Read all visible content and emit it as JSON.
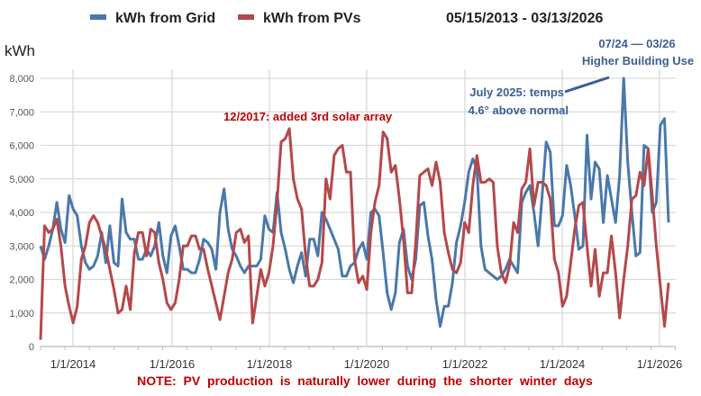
{
  "chart_data": {
    "type": "line",
    "title": "05/15/2013 - 03/13/2026",
    "ylabel": "kWh",
    "xlabel": "",
    "x_range": [
      "05/15/2013",
      "03/13/2026"
    ],
    "ylim": [
      0,
      8000
    ],
    "yticks": [
      "0",
      "1,000",
      "2,000",
      "3,000",
      "4,000",
      "5,000",
      "6,000",
      "7,000",
      "8,000"
    ],
    "xticks": [
      "1/1/2014",
      "1/1/2016",
      "1/1/2018",
      "1/1/2020",
      "1/1/2022",
      "1/1/2024",
      "1/1/2026"
    ],
    "grid": true,
    "legend_position": "top",
    "series": [
      {
        "name": "kWh from Grid",
        "color": "#4a78aa",
        "values": [
          3000,
          2600,
          3000,
          3500,
          4300,
          3500,
          3100,
          4500,
          4100,
          3900,
          3000,
          2500,
          2300,
          2400,
          2700,
          3400,
          2500,
          3600,
          2500,
          2400,
          4400,
          3400,
          3200,
          3200,
          2600,
          2600,
          2900,
          2700,
          3000,
          3700,
          2700,
          2200,
          3300,
          3600,
          3000,
          2300,
          2300,
          2200,
          2200,
          2600,
          3200,
          3100,
          2900,
          2300,
          4000,
          4700,
          3500,
          2900,
          2700,
          2400,
          2200,
          2400,
          2400,
          2400,
          2600,
          3900,
          3500,
          3400,
          4600,
          3400,
          2900,
          2300,
          1900,
          2400,
          2800,
          2100,
          3200,
          3200,
          2700,
          4000,
          3800,
          3500,
          3200,
          2900,
          2100,
          2100,
          2400,
          2500,
          2900,
          3100,
          2600,
          4000,
          4100,
          3900,
          2800,
          1600,
          1100,
          1600,
          3100,
          3500,
          2400,
          2000,
          2600,
          4200,
          4300,
          3300,
          2600,
          1400,
          600,
          1200,
          1200,
          1900,
          3100,
          3600,
          4300,
          5200,
          5600,
          5300,
          3000,
          2300,
          2200,
          2100,
          2000,
          2100,
          2300,
          2600,
          2400,
          2200,
          4300,
          4600,
          4800,
          4000,
          3000,
          4500,
          6100,
          5800,
          3600,
          3600,
          3900,
          5400,
          4800,
          3900,
          2900,
          3000,
          6300,
          4400,
          5500,
          5300,
          3700,
          5100,
          4400,
          3700,
          5100,
          8000,
          5500,
          4000,
          2700,
          2800,
          6000,
          5900,
          4000,
          4300,
          6600,
          6800,
          3700
        ]
      },
      {
        "name": "kWh from PVs",
        "color": "#b5484a",
        "values": [
          200,
          3600,
          3400,
          3500,
          3800,
          3000,
          1800,
          1200,
          700,
          1200,
          2600,
          3000,
          3700,
          3900,
          3700,
          3300,
          2900,
          2300,
          1700,
          1000,
          1100,
          1800,
          1100,
          2800,
          3400,
          3400,
          2700,
          3500,
          3400,
          2500,
          2000,
          1300,
          1100,
          1300,
          2000,
          3000,
          3000,
          3300,
          3300,
          2900,
          2900,
          2300,
          1800,
          1300,
          800,
          1500,
          2200,
          2600,
          3400,
          3500,
          3100,
          3300,
          700,
          1500,
          2300,
          1800,
          2200,
          3000,
          4300,
          6100,
          6200,
          6500,
          5000,
          4400,
          4100,
          2700,
          1800,
          1800,
          2000,
          2500,
          5000,
          4400,
          5700,
          5900,
          6000,
          5200,
          5200,
          2600,
          1900,
          2100,
          1700,
          3400,
          4300,
          4800,
          6400,
          6200,
          5200,
          5400,
          4400,
          3200,
          1600,
          1600,
          3100,
          5100,
          5200,
          5300,
          4800,
          5500,
          4900,
          3400,
          2800,
          2300,
          2200,
          2500,
          3700,
          3400,
          4800,
          5700,
          4900,
          4900,
          5000,
          4900,
          3000,
          2200,
          1900,
          2400,
          3700,
          3400,
          4700,
          4900,
          5900,
          4200,
          4900,
          4900,
          4800,
          4400,
          2600,
          2200,
          1200,
          1500,
          2500,
          3500,
          4200,
          4300,
          3000,
          1800,
          2900,
          1500,
          2200,
          2200,
          3300,
          2200,
          850,
          2000,
          3000,
          4400,
          4500,
          5200,
          4800,
          5900,
          4500,
          3000,
          1800,
          600,
          1900
        ]
      }
    ],
    "annotations": [
      "12/2017:  added 3rd solar array",
      "July 2025: temps",
      "4.6° above normal",
      "07/24 — 03/26",
      "Higher Building Use"
    ],
    "note": "NOTE:  PV  production  is  naturally  lower  during  the  shorter  winter  days"
  }
}
